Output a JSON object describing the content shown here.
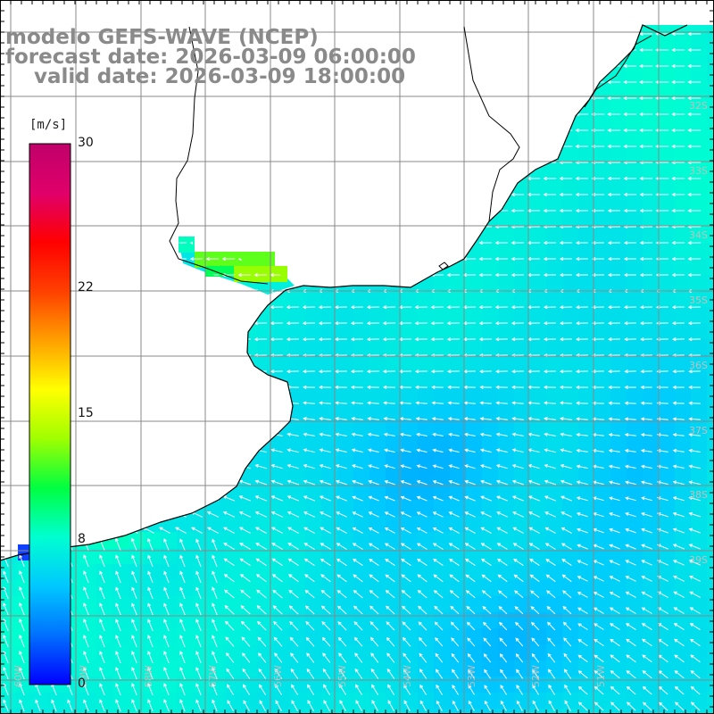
{
  "title": {
    "line1": "modelo GEFS-WAVE (NCEP)",
    "line2": "forecast date: 2026-03-09 06:00:00",
    "line3": "    valid date: 2026-03-09 18:00:00"
  },
  "colorbar": {
    "unit": "[m/s]",
    "labels": [
      {
        "text": "30",
        "value": 30
      },
      {
        "text": "22",
        "value": 22
      },
      {
        "text": "15",
        "value": 15
      },
      {
        "text": "8",
        "value": 8
      },
      {
        "text": "0",
        "value": 0
      }
    ],
    "range": [
      0,
      30
    ],
    "stops": [
      "#0000ff",
      "#0070ff",
      "#00c8ff",
      "#00ffd0",
      "#00ff40",
      "#a0ff00",
      "#ffff00",
      "#ffa000",
      "#ff4000",
      "#ff0000",
      "#e0006a",
      "#c0006a"
    ]
  },
  "map": {
    "variable": "wind speed and direction",
    "lon_labels": [
      "60W",
      "59W",
      "58W",
      "57W",
      "56W",
      "55W",
      "54W",
      "53W",
      "52W",
      "51W"
    ],
    "lat_labels": [
      "32S",
      "33S",
      "34S",
      "35S",
      "36S",
      "37S",
      "38S",
      "39S"
    ],
    "land_color": "#ffffff",
    "grid_color": "#888888",
    "arrow_color": "#ffffff"
  }
}
